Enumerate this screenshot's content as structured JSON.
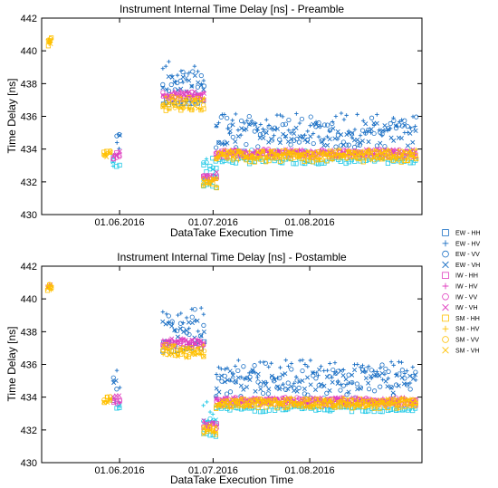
{
  "chart_data": [
    {
      "type": "scatter",
      "title": "Instrument Internal Time Delay [ns] - Preamble",
      "xlabel": "DataTake Execution Time",
      "ylabel": "Time Delay [ns]",
      "ylim": [
        430,
        442
      ],
      "yticks": [
        "430",
        "432",
        "434",
        "436",
        "438",
        "440",
        "442"
      ],
      "xticks": [
        {
          "label": "01.06.2016",
          "date": "2016-06-01"
        },
        {
          "label": "01.07.2016",
          "date": "2016-07-01"
        },
        {
          "label": "01.08.2016",
          "date": "2016-08-01"
        }
      ],
      "xlim": [
        "2016-05-07",
        "2016-09-06"
      ],
      "grid": false,
      "series": [
        {
          "name": "EW - HH",
          "clusters": [
            [
              432.3,
              433.6
            ],
            [
              432.9,
              433.4
            ],
            [
              436.7,
              437.0
            ],
            [
              431.6,
              432.2
            ],
            [
              433.1,
              433.5
            ]
          ]
        },
        {
          "name": "EW - HV",
          "clusters": [
            [
              432.9,
              435.8
            ],
            [
              437.8,
              439.5
            ],
            [
              431.8,
              434.0
            ],
            [
              434.6,
              436.2
            ]
          ]
        },
        {
          "name": "EW - VV",
          "clusters": [
            [
              433.0,
              435.6
            ],
            [
              436.9,
              439.2
            ],
            [
              431.6,
              433.6
            ],
            [
              433.9,
              436.0
            ]
          ]
        },
        {
          "name": "EW - VH",
          "clusters": [
            [
              433.1,
              435.0
            ],
            [
              437.5,
              438.6
            ],
            [
              432.0,
              432.8
            ],
            [
              434.2,
              435.6
            ]
          ]
        },
        {
          "name": "IW - HH",
          "clusters": [
            [
              433.3,
              433.8
            ],
            [
              437.0,
              437.4
            ],
            [
              432.0,
              432.4
            ],
            [
              433.5,
              433.9
            ]
          ]
        },
        {
          "name": "IW - HV",
          "clusters": [
            [
              433.5,
              434.0
            ],
            [
              437.1,
              437.6
            ],
            [
              432.1,
              432.5
            ],
            [
              433.6,
              434.0
            ]
          ]
        },
        {
          "name": "IW - VV",
          "clusters": [
            [
              433.4,
              433.9
            ],
            [
              437.0,
              437.5
            ],
            [
              432.0,
              432.5
            ],
            [
              433.5,
              434.0
            ]
          ]
        },
        {
          "name": "IW - VH",
          "clusters": [
            [
              433.6,
              434.1
            ],
            [
              437.2,
              437.6
            ],
            [
              432.1,
              432.6
            ],
            [
              433.6,
              434.0
            ]
          ]
        },
        {
          "name": "SM - HH",
          "clusters": [
            [
              440.3,
              440.8
            ],
            [
              433.5,
              433.9
            ],
            [
              436.3,
              437.2
            ],
            [
              431.6,
              432.2
            ],
            [
              433.2,
              433.9
            ]
          ]
        },
        {
          "name": "SM - HV",
          "clusters": [
            [
              440.4,
              440.7
            ],
            [
              433.4,
              433.8
            ],
            [
              436.4,
              437.3
            ],
            [
              431.7,
              432.3
            ],
            [
              433.3,
              434.0
            ]
          ]
        },
        {
          "name": "SM - VV",
          "clusters": [
            [
              440.5,
              440.8
            ],
            [
              433.6,
              433.9
            ],
            [
              436.5,
              437.1
            ],
            [
              431.8,
              432.2
            ],
            [
              433.3,
              433.9
            ]
          ]
        },
        {
          "name": "SM - VH",
          "clusters": [
            [
              440.4,
              440.7
            ],
            [
              433.5,
              433.8
            ],
            [
              436.4,
              437.2
            ],
            [
              431.7,
              432.3
            ],
            [
              433.4,
              433.9
            ]
          ]
        }
      ]
    },
    {
      "type": "scatter",
      "title": "Instrument Internal Time Delay [ns] - Postamble",
      "xlabel": "DataTake Execution Time",
      "ylabel": "Time Delay [ns]",
      "ylim": [
        430,
        442
      ],
      "yticks": [
        "430",
        "432",
        "434",
        "436",
        "438",
        "440",
        "442"
      ],
      "xticks": [
        {
          "label": "01.06.2016",
          "date": "2016-06-01"
        },
        {
          "label": "01.07.2016",
          "date": "2016-07-01"
        },
        {
          "label": "01.08.2016",
          "date": "2016-08-01"
        }
      ],
      "xlim": [
        "2016-05-07",
        "2016-09-06"
      ],
      "grid": false,
      "series": [
        {
          "name": "EW - HH",
          "clusters": [
            [
              433.1,
              434.0
            ],
            [
              436.8,
              437.4
            ],
            [
              431.6,
              432.1
            ],
            [
              433.1,
              433.5
            ]
          ]
        },
        {
          "name": "EW - HV",
          "clusters": [
            [
              433.2,
              436.1
            ],
            [
              437.9,
              439.6
            ],
            [
              431.8,
              434.1
            ],
            [
              434.7,
              436.3
            ]
          ]
        },
        {
          "name": "EW - VV",
          "clusters": [
            [
              433.1,
              435.9
            ],
            [
              437.0,
              439.4
            ],
            [
              431.6,
              433.8
            ],
            [
              433.9,
              436.1
            ]
          ]
        },
        {
          "name": "EW - VH",
          "clusters": [
            [
              433.3,
              435.2
            ],
            [
              437.6,
              438.8
            ],
            [
              432.0,
              432.8
            ],
            [
              434.2,
              435.7
            ]
          ]
        },
        {
          "name": "IW - HH",
          "clusters": [
            [
              433.4,
              433.9
            ],
            [
              437.0,
              437.4
            ],
            [
              432.0,
              432.4
            ],
            [
              433.5,
              433.9
            ]
          ]
        },
        {
          "name": "IW - HV",
          "clusters": [
            [
              433.6,
              434.1
            ],
            [
              437.1,
              437.6
            ],
            [
              432.1,
              432.5
            ],
            [
              433.6,
              434.0
            ]
          ]
        },
        {
          "name": "IW - VV",
          "clusters": [
            [
              433.5,
              434.0
            ],
            [
              437.0,
              437.5
            ],
            [
              432.0,
              432.5
            ],
            [
              433.5,
              434.0
            ]
          ]
        },
        {
          "name": "IW - VH",
          "clusters": [
            [
              440.7,
              440.9
            ],
            [
              433.6,
              434.1
            ],
            [
              437.2,
              437.6
            ],
            [
              432.1,
              432.6
            ],
            [
              433.6,
              434.0
            ]
          ]
        },
        {
          "name": "SM - HH",
          "clusters": [
            [
              440.5,
              440.9
            ],
            [
              433.6,
              434.2
            ],
            [
              436.4,
              437.2
            ],
            [
              431.7,
              432.2
            ],
            [
              433.3,
              433.9
            ]
          ]
        },
        {
          "name": "SM - HV",
          "clusters": [
            [
              440.5,
              440.8
            ],
            [
              433.6,
              434.0
            ],
            [
              436.5,
              437.3
            ],
            [
              431.8,
              432.3
            ],
            [
              433.3,
              434.0
            ]
          ]
        },
        {
          "name": "SM - VV",
          "clusters": [
            [
              440.6,
              440.9
            ],
            [
              433.7,
              434.1
            ],
            [
              436.5,
              437.1
            ],
            [
              431.8,
              432.2
            ],
            [
              433.4,
              433.9
            ]
          ]
        },
        {
          "name": "SM - VH",
          "clusters": [
            [
              440.6,
              440.8
            ],
            [
              433.6,
              433.9
            ],
            [
              436.4,
              437.2
            ],
            [
              431.7,
              432.3
            ],
            [
              433.4,
              433.9
            ]
          ]
        }
      ]
    }
  ],
  "legend": {
    "placement": "right-center",
    "items": [
      {
        "label": "EW - HH",
        "marker": "square",
        "color": "#1a6fc4"
      },
      {
        "label": "EW - HV",
        "marker": "plus",
        "color": "#1a6fc4"
      },
      {
        "label": "EW - VV",
        "marker": "circle",
        "color": "#1a6fc4"
      },
      {
        "label": "EW - VH",
        "marker": "cross",
        "color": "#1a6fc4"
      },
      {
        "label": "IW - HH",
        "marker": "square",
        "color": "#e040c0"
      },
      {
        "label": "IW - HV",
        "marker": "plus",
        "color": "#e040c0"
      },
      {
        "label": "IW - VV",
        "marker": "circle",
        "color": "#e040c0"
      },
      {
        "label": "IW - VH",
        "marker": "cross",
        "color": "#e040c0"
      },
      {
        "label": "SM - HH",
        "marker": "square",
        "color": "#ffc000"
      },
      {
        "label": "SM - HV",
        "marker": "plus",
        "color": "#ffc000"
      },
      {
        "label": "SM - VV",
        "marker": "circle",
        "color": "#ffc000"
      },
      {
        "label": "SM - VH",
        "marker": "cross",
        "color": "#ffc000"
      }
    ]
  },
  "colors": {
    "ew_blue": "#1a6fc4",
    "ew_cyan": "#1ec8e6",
    "iw_magenta": "#e040c0",
    "sm_yellow": "#ffc000"
  }
}
